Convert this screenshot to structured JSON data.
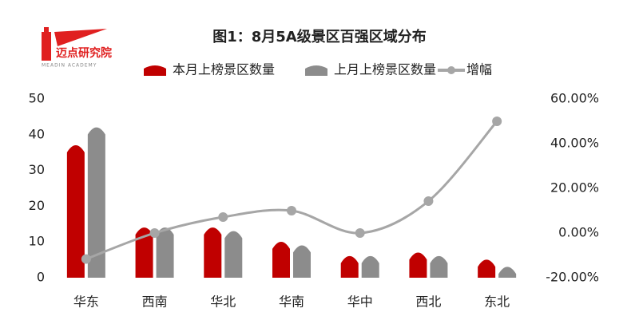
{
  "brand": {
    "name": "迈点研究院",
    "tagline": "MEADIN ACADEMY"
  },
  "chart_data": {
    "type": "bar-line",
    "title": "图1：8月5A级景区百强区域分布",
    "categories": [
      "华东",
      "西南",
      "华北",
      "华南",
      "华中",
      "西北",
      "东北"
    ],
    "series": [
      {
        "name": "本月上榜景区数量",
        "type": "bar",
        "color": "#c00000",
        "values": [
          38,
          15,
          15,
          11,
          7,
          8,
          6
        ]
      },
      {
        "name": "上月上榜景区数量",
        "type": "bar",
        "color": "#8c8c8c",
        "values": [
          43,
          15,
          14,
          10,
          7,
          7,
          4
        ]
      },
      {
        "name": "增幅",
        "type": "line",
        "axis": "y2",
        "color": "#a6a6a6",
        "values": [
          -11.63,
          0,
          7.14,
          10,
          0,
          14.29,
          50
        ]
      }
    ],
    "ylim": [
      0,
      50
    ],
    "yticks": [
      0,
      10,
      20,
      30,
      40,
      50
    ],
    "y2lim": [
      -20,
      60
    ],
    "y2ticks": [
      {
        "value": -20,
        "label": "-20.00%"
      },
      {
        "value": 0,
        "label": "0.00%"
      },
      {
        "value": 20,
        "label": "20.00%"
      },
      {
        "value": 40,
        "label": "40.00%"
      },
      {
        "value": 60,
        "label": "60.00%"
      }
    ],
    "grid": false,
    "legend": "top"
  }
}
